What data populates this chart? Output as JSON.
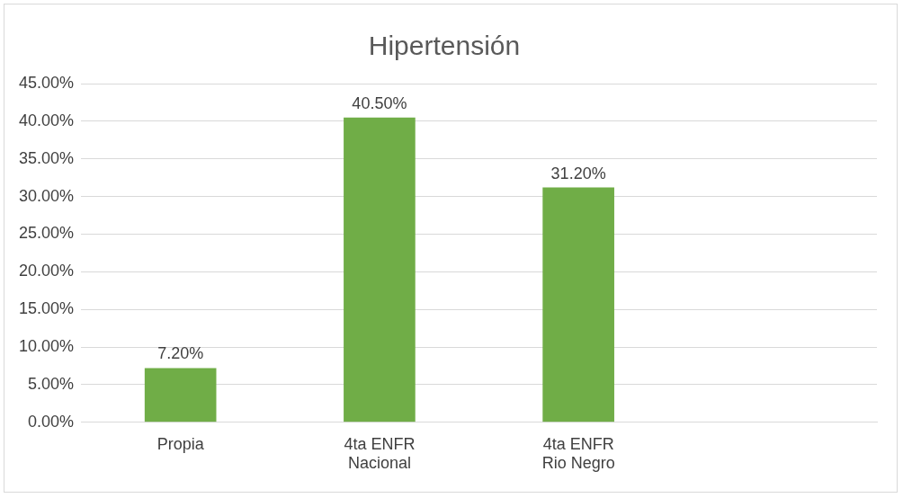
{
  "chart_data": {
    "type": "bar",
    "title": "Hipertensión",
    "categories": [
      "Propia",
      "4ta ENFR\nNacional",
      "4ta ENFR\nRio Negro",
      null
    ],
    "values": [
      7.2,
      40.5,
      31.2,
      null
    ],
    "color": "#70ad47",
    "value_labels": [
      "7.20%",
      "40.50%",
      "31.20%",
      null
    ],
    "ylim": [
      0,
      45
    ],
    "yticks": [
      {
        "value": 0,
        "label": "0.00%"
      },
      {
        "value": 5,
        "label": "5.00%"
      },
      {
        "value": 10,
        "label": "10.00%"
      },
      {
        "value": 15,
        "label": "15.00%"
      },
      {
        "value": 20,
        "label": "20.00%"
      },
      {
        "value": 25,
        "label": "25.00%"
      },
      {
        "value": 30,
        "label": "30.00%"
      },
      {
        "value": 35,
        "label": "35.00%"
      },
      {
        "value": 40,
        "label": "40.00%"
      },
      {
        "value": 45,
        "label": "45.00%"
      }
    ],
    "grid": "y",
    "legend": false
  }
}
